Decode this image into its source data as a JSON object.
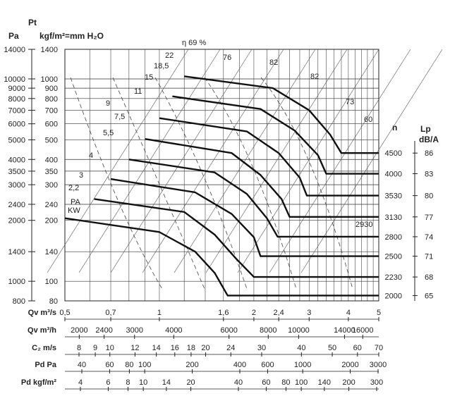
{
  "chart_data": {
    "type": "line",
    "title": "",
    "y_axes": {
      "pa_unit": "Pa",
      "kgf_unit": "kgf/m²=mm H₂O",
      "pt_label": "Pt",
      "pa_ticks": [
        "14000",
        "10000",
        "9000",
        "8000",
        "7000",
        "6000",
        "5000",
        "4000",
        "3500",
        "3000",
        "2400",
        "2000",
        "1400",
        "1000",
        "800"
      ],
      "kgf_ticks": [
        "1400",
        "1000",
        "900",
        "800",
        "700",
        "600",
        "500",
        "400",
        "350",
        "300",
        "240",
        "200",
        "140",
        "100",
        "80"
      ],
      "kgf_values": [
        1400,
        1000,
        900,
        800,
        700,
        600,
        500,
        400,
        350,
        300,
        240,
        200,
        140,
        100,
        80
      ],
      "ylim_kgf": [
        80,
        1400
      ],
      "scale": "log"
    },
    "x_axes": {
      "qv_m3s_label": "Qv m³/s",
      "qv_m3s_ticks": [
        "0,5",
        "0,7",
        "1",
        "1,6",
        "2",
        "2,4",
        "3",
        "4",
        "5"
      ],
      "qv_m3s_values": [
        0.5,
        0.7,
        1,
        1.6,
        2,
        2.4,
        3,
        4,
        5
      ],
      "xlim_m3s": [
        0.5,
        5
      ],
      "scale": "log",
      "qv_m3h_label": "Qv m³/h",
      "qv_m3h_ticks": [
        "2000",
        "2400",
        "3000",
        "4000",
        "6000",
        "8000",
        "10000",
        "14000",
        "16000"
      ],
      "qv_m3h_values": [
        2000,
        2400,
        3000,
        4000,
        6000,
        8000,
        10000,
        14000,
        16000
      ],
      "c2_label": "C₂ m/s",
      "c2_ticks": [
        "8",
        "9",
        "10",
        "12",
        "14",
        "16",
        "18",
        "20",
        "24",
        "30",
        "40",
        "50",
        "60",
        "70"
      ],
      "c2_values": [
        8,
        9,
        10,
        12,
        14,
        16,
        18,
        20,
        24,
        30,
        40,
        50,
        60,
        70
      ],
      "pd_pa_label": "Pd Pa",
      "pd_pa_ticks": [
        "40",
        "60",
        "80",
        "100",
        "200",
        "400",
        "600",
        "1000",
        "2000",
        "3000"
      ],
      "pd_pa_values": [
        40,
        60,
        80,
        100,
        200,
        400,
        600,
        1000,
        2000,
        3000
      ],
      "pd_kgf_label": "Pd kgf/m²",
      "pd_kgf_ticks": [
        "4",
        "6",
        "8",
        "10",
        "14",
        "20",
        "40",
        "60",
        "80",
        "100",
        "140",
        "200",
        "300"
      ],
      "pd_kgf_values": [
        4,
        6,
        8,
        10,
        14,
        20,
        40,
        60,
        80,
        100,
        140,
        200,
        300
      ]
    },
    "speed_axis": {
      "label": "n",
      "ticks": [
        "4500",
        "4000",
        "3530",
        "3130",
        "2800",
        "2500",
        "2230",
        "2000"
      ],
      "extra_label": "2930"
    },
    "lp_axis": {
      "label": "Lp dB/A",
      "ticks": [
        "86",
        "83",
        "80",
        "77",
        "74",
        "71",
        "68",
        "65"
      ]
    },
    "series": [
      {
        "name": "2000",
        "points": [
          [
            0.5,
            205
          ],
          [
            1.0,
            175
          ],
          [
            1.3,
            140
          ],
          [
            1.5,
            110
          ],
          [
            1.65,
            85
          ]
        ],
        "tail_kgf": 85
      },
      {
        "name": "2230",
        "points": [
          [
            0.62,
            255
          ],
          [
            1.2,
            220
          ],
          [
            1.5,
            170
          ],
          [
            1.75,
            130
          ],
          [
            2.0,
            105
          ]
        ],
        "tail_kgf": 105
      },
      {
        "name": "2500",
        "points": [
          [
            0.7,
            320
          ],
          [
            1.3,
            275
          ],
          [
            1.7,
            215
          ],
          [
            2.0,
            165
          ],
          [
            2.1,
            133
          ]
        ],
        "tail_kgf": 133
      },
      {
        "name": "2800",
        "points": [
          [
            0.8,
            400
          ],
          [
            1.5,
            345
          ],
          [
            1.9,
            270
          ],
          [
            2.2,
            205
          ],
          [
            2.38,
            166
          ]
        ],
        "tail_kgf": 166
      },
      {
        "name": "3130",
        "points": [
          [
            0.9,
            505
          ],
          [
            1.7,
            430
          ],
          [
            2.1,
            335
          ],
          [
            2.45,
            255
          ],
          [
            2.6,
            208
          ]
        ],
        "tail_kgf": 208
      },
      {
        "name": "3530",
        "points": [
          [
            1.0,
            640
          ],
          [
            1.9,
            550
          ],
          [
            2.4,
            430
          ],
          [
            2.8,
            325
          ],
          [
            2.95,
            265
          ]
        ],
        "tail_kgf": 265
      },
      {
        "name": "4000",
        "points": [
          [
            1.1,
            820
          ],
          [
            2.1,
            710
          ],
          [
            2.7,
            555
          ],
          [
            3.2,
            420
          ],
          [
            3.4,
            340
          ]
        ],
        "tail_kgf": 340
      },
      {
        "name": "4500",
        "points": [
          [
            1.2,
            1030
          ],
          [
            2.3,
            900
          ],
          [
            3.0,
            700
          ],
          [
            3.5,
            530
          ],
          [
            3.8,
            430
          ]
        ],
        "tail_kgf": 430
      }
    ],
    "power_labels": [
      "KW",
      "2,2",
      "3",
      "4",
      "5,5",
      "7,5",
      "9",
      "11",
      "15",
      "18,5",
      "22"
    ],
    "pa_label": "PA",
    "efficiency_labels": [
      "η 69 %",
      "76",
      "82",
      "82",
      "73",
      "60"
    ],
    "grid": true
  }
}
